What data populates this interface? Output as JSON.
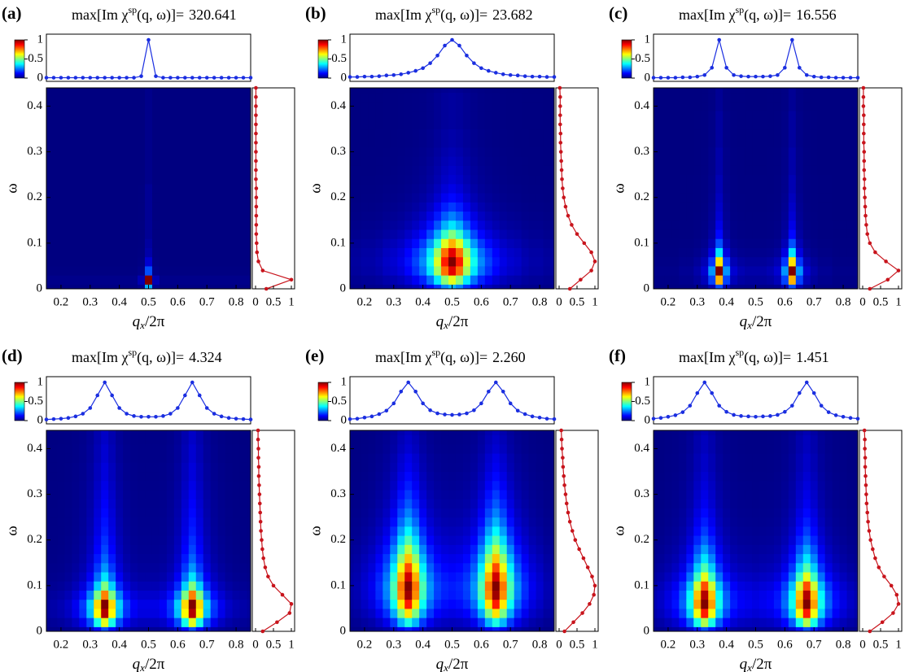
{
  "chart_data": [
    {
      "type": "heatmap",
      "label": "(a)",
      "title_main": "max[Im χ",
      "title_sup": "sp",
      "title_arg": "(q, ω)]=",
      "title_value": "320.641",
      "xlim": [
        0.15,
        0.85
      ],
      "xticks": [
        0.2,
        0.3,
        0.4,
        0.5,
        0.6,
        0.7,
        0.8
      ],
      "ylim": [
        0,
        0.44
      ],
      "yticks": [
        0,
        0.1,
        0.2,
        0.3,
        0.4
      ],
      "xlabel_main": "q",
      "xlabel_sub": "x",
      "xlabel_rest": "/2π",
      "ylabel": "ω",
      "colorbar_ticks": [
        0,
        0.5,
        1
      ],
      "profile_ticks": [
        0,
        0.5,
        1
      ],
      "top_color": "#1a2ee0",
      "profile_color": "#c8141c",
      "q": [
        0.15,
        0.175,
        0.2,
        0.225,
        0.25,
        0.275,
        0.3,
        0.325,
        0.35,
        0.375,
        0.4,
        0.425,
        0.45,
        0.475,
        0.5,
        0.525,
        0.55,
        0.575,
        0.6,
        0.625,
        0.65,
        0.675,
        0.7,
        0.725,
        0.75,
        0.775,
        0.8,
        0.825,
        0.85
      ],
      "q_cut": [
        0.01,
        0.01,
        0.01,
        0.01,
        0.01,
        0.01,
        0.01,
        0.01,
        0.01,
        0.01,
        0.01,
        0.01,
        0.01,
        0.05,
        1,
        0.05,
        0.01,
        0.01,
        0.01,
        0.01,
        0.01,
        0.01,
        0.01,
        0.01,
        0.01,
        0.01,
        0.01,
        0.01,
        0.01
      ],
      "omega": [
        0,
        0.02,
        0.04,
        0.06,
        0.08,
        0.1,
        0.12,
        0.14,
        0.16,
        0.18,
        0.2,
        0.22,
        0.24,
        0.26,
        0.28,
        0.3,
        0.32,
        0.34,
        0.36,
        0.38,
        0.4,
        0.42,
        0.44
      ],
      "omega_cut": [
        0.3,
        1,
        0.2,
        0.08,
        0.04,
        0.03,
        0.02,
        0.02,
        0.02,
        0.02,
        0.02,
        0.02,
        0.01,
        0.01,
        0.01,
        0.01,
        0.01,
        0.01,
        0.01,
        0.01,
        0.01,
        0.01,
        0.01
      ]
    },
    {
      "type": "heatmap",
      "label": "(b)",
      "title_main": "max[Im χ",
      "title_sup": "sp",
      "title_arg": "(q, ω)]=",
      "title_value": "23.682",
      "xlim": [
        0.15,
        0.85
      ],
      "xticks": [
        0.2,
        0.3,
        0.4,
        0.5,
        0.6,
        0.7,
        0.8
      ],
      "ylim": [
        0,
        0.44
      ],
      "yticks": [
        0,
        0.1,
        0.2,
        0.3,
        0.4
      ],
      "xlabel_main": "q",
      "xlabel_sub": "x",
      "xlabel_rest": "/2π",
      "ylabel": "ω",
      "colorbar_ticks": [
        0,
        0.5,
        1
      ],
      "profile_ticks": [
        0,
        0.5,
        1
      ],
      "top_color": "#1a2ee0",
      "profile_color": "#c8141c",
      "q": [
        0.15,
        0.175,
        0.2,
        0.225,
        0.25,
        0.275,
        0.3,
        0.325,
        0.35,
        0.375,
        0.4,
        0.425,
        0.45,
        0.475,
        0.5,
        0.525,
        0.55,
        0.575,
        0.6,
        0.625,
        0.65,
        0.675,
        0.7,
        0.725,
        0.75,
        0.775,
        0.8,
        0.825,
        0.85
      ],
      "q_cut": [
        0.03,
        0.03,
        0.04,
        0.04,
        0.05,
        0.07,
        0.08,
        0.1,
        0.14,
        0.19,
        0.26,
        0.39,
        0.59,
        0.85,
        1,
        0.85,
        0.59,
        0.39,
        0.26,
        0.19,
        0.14,
        0.1,
        0.08,
        0.07,
        0.05,
        0.04,
        0.04,
        0.03,
        0.03
      ],
      "omega": [
        0,
        0.02,
        0.04,
        0.06,
        0.08,
        0.1,
        0.12,
        0.14,
        0.16,
        0.18,
        0.2,
        0.22,
        0.24,
        0.26,
        0.28,
        0.3,
        0.32,
        0.34,
        0.36,
        0.38,
        0.4,
        0.42,
        0.44
      ],
      "omega_cut": [
        0.3,
        0.6,
        0.9,
        1,
        0.9,
        0.7,
        0.5,
        0.35,
        0.25,
        0.18,
        0.13,
        0.1,
        0.08,
        0.07,
        0.06,
        0.05,
        0.04,
        0.04,
        0.03,
        0.03,
        0.03,
        0.03,
        0.02
      ]
    },
    {
      "type": "heatmap",
      "label": "(c)",
      "title_main": "max[Im χ",
      "title_sup": "sp",
      "title_arg": "(q, ω)]=",
      "title_value": "16.556",
      "xlim": [
        0.15,
        0.85
      ],
      "xticks": [
        0.2,
        0.3,
        0.4,
        0.5,
        0.6,
        0.7,
        0.8
      ],
      "ylim": [
        0,
        0.44
      ],
      "yticks": [
        0,
        0.1,
        0.2,
        0.3,
        0.4
      ],
      "xlabel_main": "q",
      "xlabel_sub": "x",
      "xlabel_rest": "/2π",
      "ylabel": "ω",
      "colorbar_ticks": [
        0,
        0.5,
        1
      ],
      "profile_ticks": [
        0,
        0.5,
        1
      ],
      "top_color": "#1a2ee0",
      "profile_color": "#c8141c",
      "q": [
        0.15,
        0.175,
        0.2,
        0.225,
        0.25,
        0.275,
        0.3,
        0.325,
        0.35,
        0.375,
        0.4,
        0.425,
        0.45,
        0.475,
        0.5,
        0.525,
        0.55,
        0.575,
        0.6,
        0.625,
        0.65,
        0.675,
        0.7,
        0.725,
        0.75,
        0.775,
        0.8,
        0.825,
        0.85
      ],
      "q_cut": [
        0.01,
        0.01,
        0.01,
        0.01,
        0.02,
        0.02,
        0.04,
        0.08,
        0.27,
        1,
        0.27,
        0.08,
        0.05,
        0.04,
        0.04,
        0.04,
        0.05,
        0.08,
        0.27,
        1,
        0.27,
        0.08,
        0.04,
        0.02,
        0.02,
        0.01,
        0.01,
        0.01,
        0.01
      ],
      "omega": [
        0,
        0.02,
        0.04,
        0.06,
        0.08,
        0.1,
        0.12,
        0.14,
        0.16,
        0.18,
        0.2,
        0.22,
        0.24,
        0.26,
        0.28,
        0.3,
        0.32,
        0.34,
        0.36,
        0.38,
        0.4,
        0.42,
        0.44
      ],
      "omega_cut": [
        0.2,
        0.7,
        1,
        0.65,
        0.35,
        0.2,
        0.13,
        0.1,
        0.08,
        0.07,
        0.06,
        0.05,
        0.05,
        0.04,
        0.04,
        0.04,
        0.03,
        0.03,
        0.03,
        0.03,
        0.02,
        0.02,
        0.02
      ]
    },
    {
      "type": "heatmap",
      "label": "(d)",
      "title_main": "max[Im χ",
      "title_sup": "sp",
      "title_arg": "(q, ω)]=",
      "title_value": "4.324",
      "xlim": [
        0.15,
        0.85
      ],
      "xticks": [
        0.2,
        0.3,
        0.4,
        0.5,
        0.6,
        0.7,
        0.8
      ],
      "ylim": [
        0,
        0.44
      ],
      "yticks": [
        0,
        0.1,
        0.2,
        0.3,
        0.4
      ],
      "xlabel_main": "q",
      "xlabel_sub": "x",
      "xlabel_rest": "/2π",
      "ylabel": "ω",
      "colorbar_ticks": [
        0,
        0.5,
        1
      ],
      "profile_ticks": [
        0,
        0.5,
        1
      ],
      "top_color": "#1a2ee0",
      "profile_color": "#c8141c",
      "q": [
        0.15,
        0.175,
        0.2,
        0.225,
        0.25,
        0.275,
        0.3,
        0.325,
        0.35,
        0.375,
        0.4,
        0.425,
        0.45,
        0.475,
        0.5,
        0.525,
        0.55,
        0.575,
        0.6,
        0.625,
        0.65,
        0.675,
        0.7,
        0.725,
        0.75,
        0.775,
        0.8,
        0.825,
        0.85
      ],
      "q_cut": [
        0.03,
        0.04,
        0.05,
        0.07,
        0.11,
        0.18,
        0.33,
        0.66,
        1,
        0.66,
        0.33,
        0.18,
        0.12,
        0.1,
        0.1,
        0.1,
        0.12,
        0.18,
        0.33,
        0.66,
        1,
        0.66,
        0.33,
        0.18,
        0.11,
        0.07,
        0.05,
        0.04,
        0.03
      ],
      "omega": [
        0,
        0.02,
        0.04,
        0.06,
        0.08,
        0.1,
        0.12,
        0.14,
        0.16,
        0.18,
        0.2,
        0.22,
        0.24,
        0.26,
        0.28,
        0.3,
        0.32,
        0.34,
        0.36,
        0.38,
        0.4,
        0.42,
        0.44
      ],
      "omega_cut": [
        0.2,
        0.6,
        0.95,
        1,
        0.75,
        0.5,
        0.35,
        0.27,
        0.22,
        0.19,
        0.17,
        0.15,
        0.14,
        0.13,
        0.12,
        0.11,
        0.1,
        0.09,
        0.09,
        0.08,
        0.08,
        0.07,
        0.07
      ]
    },
    {
      "type": "heatmap",
      "label": "(e)",
      "title_main": "max[Im χ",
      "title_sup": "sp",
      "title_arg": "(q, ω)]=",
      "title_value": "2.260",
      "xlim": [
        0.15,
        0.85
      ],
      "xticks": [
        0.2,
        0.3,
        0.4,
        0.5,
        0.6,
        0.7,
        0.8
      ],
      "ylim": [
        0,
        0.44
      ],
      "yticks": [
        0,
        0.1,
        0.2,
        0.3,
        0.4
      ],
      "xlabel_main": "q",
      "xlabel_sub": "x",
      "xlabel_rest": "/2π",
      "ylabel": "ω",
      "colorbar_ticks": [
        0,
        0.5,
        1
      ],
      "profile_ticks": [
        0,
        0.5,
        1
      ],
      "top_color": "#1a2ee0",
      "profile_color": "#c8141c",
      "q": [
        0.15,
        0.175,
        0.2,
        0.225,
        0.25,
        0.275,
        0.3,
        0.325,
        0.35,
        0.375,
        0.4,
        0.425,
        0.45,
        0.475,
        0.5,
        0.525,
        0.55,
        0.575,
        0.6,
        0.625,
        0.65,
        0.675,
        0.7,
        0.725,
        0.75,
        0.775,
        0.8,
        0.825,
        0.85
      ],
      "q_cut": [
        0.04,
        0.05,
        0.08,
        0.11,
        0.17,
        0.26,
        0.45,
        0.76,
        1,
        0.76,
        0.45,
        0.27,
        0.19,
        0.16,
        0.15,
        0.16,
        0.19,
        0.27,
        0.45,
        0.76,
        1,
        0.76,
        0.45,
        0.26,
        0.17,
        0.11,
        0.08,
        0.05,
        0.04
      ],
      "omega": [
        0,
        0.02,
        0.04,
        0.06,
        0.08,
        0.1,
        0.12,
        0.14,
        0.16,
        0.18,
        0.2,
        0.22,
        0.24,
        0.26,
        0.28,
        0.3,
        0.32,
        0.34,
        0.36,
        0.38,
        0.4,
        0.42,
        0.44
      ],
      "omega_cut": [
        0.15,
        0.4,
        0.65,
        0.85,
        0.97,
        1,
        0.92,
        0.8,
        0.68,
        0.56,
        0.45,
        0.37,
        0.3,
        0.25,
        0.21,
        0.18,
        0.15,
        0.13,
        0.11,
        0.1,
        0.08,
        0.07,
        0.06
      ]
    },
    {
      "type": "heatmap",
      "label": "(f)",
      "title_main": "max[Im χ",
      "title_sup": "sp",
      "title_arg": "(q, ω)]=",
      "title_value": "1.451",
      "xlim": [
        0.15,
        0.85
      ],
      "xticks": [
        0.2,
        0.3,
        0.4,
        0.5,
        0.6,
        0.7,
        0.8
      ],
      "ylim": [
        0,
        0.44
      ],
      "yticks": [
        0,
        0.1,
        0.2,
        0.3,
        0.4
      ],
      "xlabel_main": "q",
      "xlabel_sub": "x",
      "xlabel_rest": "/2π",
      "ylabel": "ω",
      "colorbar_ticks": [
        0,
        0.5,
        1
      ],
      "profile_ticks": [
        0,
        0.5,
        1
      ],
      "top_color": "#1a2ee0",
      "profile_color": "#c8141c",
      "q": [
        0.15,
        0.175,
        0.2,
        0.225,
        0.25,
        0.275,
        0.3,
        0.325,
        0.35,
        0.375,
        0.4,
        0.425,
        0.45,
        0.475,
        0.5,
        0.525,
        0.55,
        0.575,
        0.6,
        0.625,
        0.65,
        0.675,
        0.7,
        0.725,
        0.75,
        0.775,
        0.8,
        0.825,
        0.85
      ],
      "q_cut": [
        0.05,
        0.07,
        0.1,
        0.14,
        0.22,
        0.39,
        0.72,
        1,
        0.72,
        0.39,
        0.23,
        0.15,
        0.12,
        0.11,
        0.1,
        0.11,
        0.12,
        0.15,
        0.23,
        0.39,
        0.72,
        1,
        0.72,
        0.39,
        0.22,
        0.14,
        0.1,
        0.07,
        0.05
      ],
      "omega": [
        0,
        0.02,
        0.04,
        0.06,
        0.08,
        0.1,
        0.12,
        0.14,
        0.16,
        0.18,
        0.2,
        0.22,
        0.24,
        0.26,
        0.28,
        0.3,
        0.32,
        0.34,
        0.36,
        0.38,
        0.4,
        0.42,
        0.44
      ],
      "omega_cut": [
        0.2,
        0.55,
        0.85,
        1,
        0.95,
        0.8,
        0.6,
        0.45,
        0.35,
        0.28,
        0.22,
        0.18,
        0.15,
        0.13,
        0.11,
        0.1,
        0.09,
        0.08,
        0.07,
        0.07,
        0.06,
        0.06,
        0.05
      ]
    }
  ]
}
